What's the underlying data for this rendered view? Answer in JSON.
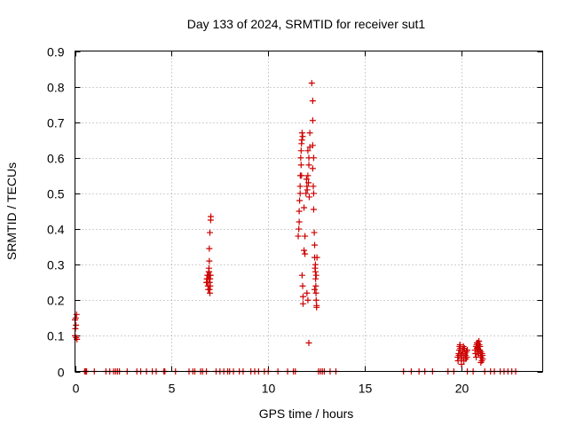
{
  "chart_data": {
    "type": "scatter",
    "title": "Day 133 of 2024, SRMTID for receiver sut1",
    "xlabel": "GPS time / hours",
    "ylabel": "SRMTID / TECUs",
    "xlim": [
      0,
      24.2
    ],
    "ylim": [
      0,
      0.9
    ],
    "xticks": [
      0,
      5,
      10,
      15,
      20
    ],
    "yticks": [
      0,
      0.1,
      0.2,
      0.3,
      0.4,
      0.5,
      0.6,
      0.7,
      0.8,
      0.9
    ],
    "xtick_labels": [
      "0",
      "5",
      "10",
      "15",
      "20"
    ],
    "ytick_labels": [
      "0",
      "0.1",
      "0.2",
      "0.3",
      "0.4",
      "0.5",
      "0.6",
      "0.7",
      "0.8",
      "0.9"
    ],
    "grid": true,
    "marker": "+",
    "series": [
      {
        "name": "SRMTID",
        "color": "#cc0000",
        "points": [
          [
            0.0,
            0.145
          ],
          [
            0.02,
            0.12
          ],
          [
            0.04,
            0.15
          ],
          [
            0.05,
            0.13
          ],
          [
            0.06,
            0.095
          ],
          [
            0.1,
            0.09
          ],
          [
            0.08,
            0.16
          ],
          [
            0.0,
            0.1
          ],
          [
            0.5,
            0.0
          ],
          [
            0.55,
            0.0
          ],
          [
            0.6,
            0.0
          ],
          [
            1.0,
            0.0
          ],
          [
            1.6,
            0.0
          ],
          [
            1.8,
            0.0
          ],
          [
            2.0,
            0.0
          ],
          [
            2.1,
            0.0
          ],
          [
            2.2,
            0.0
          ],
          [
            2.3,
            0.0
          ],
          [
            2.7,
            0.0
          ],
          [
            3.2,
            0.0
          ],
          [
            3.4,
            0.0
          ],
          [
            3.7,
            0.0
          ],
          [
            4.0,
            0.0
          ],
          [
            4.2,
            0.0
          ],
          [
            4.6,
            0.0
          ],
          [
            4.65,
            0.0
          ],
          [
            5.2,
            0.0
          ],
          [
            5.9,
            0.0
          ],
          [
            6.1,
            0.0
          ],
          [
            6.2,
            0.0
          ],
          [
            6.5,
            0.0
          ],
          [
            6.6,
            0.0
          ],
          [
            6.8,
            0.0
          ],
          [
            7.3,
            0.0
          ],
          [
            7.5,
            0.0
          ],
          [
            7.7,
            0.0
          ],
          [
            7.9,
            0.0
          ],
          [
            8.0,
            0.0
          ],
          [
            8.2,
            0.0
          ],
          [
            8.5,
            0.0
          ],
          [
            8.7,
            0.0
          ],
          [
            9.1,
            0.0
          ],
          [
            9.3,
            0.0
          ],
          [
            9.5,
            0.0
          ],
          [
            9.8,
            0.0
          ],
          [
            10.0,
            0.0
          ],
          [
            10.5,
            0.0
          ],
          [
            11.0,
            0.0
          ],
          [
            11.3,
            0.0
          ],
          [
            11.4,
            0.0
          ],
          [
            12.6,
            0.0
          ],
          [
            12.7,
            0.0
          ],
          [
            12.8,
            0.0
          ],
          [
            12.9,
            0.0
          ],
          [
            13.2,
            0.0
          ],
          [
            13.5,
            0.0
          ],
          [
            17.0,
            0.0
          ],
          [
            17.4,
            0.0
          ],
          [
            17.8,
            0.0
          ],
          [
            18.1,
            0.0
          ],
          [
            18.5,
            0.0
          ],
          [
            19.3,
            0.0
          ],
          [
            19.6,
            0.0
          ],
          [
            20.3,
            0.0
          ],
          [
            20.6,
            0.0
          ],
          [
            21.2,
            0.0
          ],
          [
            21.5,
            0.0
          ],
          [
            21.7,
            0.0
          ],
          [
            22.0,
            0.0
          ],
          [
            22.2,
            0.0
          ],
          [
            22.4,
            0.0
          ],
          [
            22.6,
            0.0
          ],
          [
            22.8,
            0.0
          ],
          [
            6.8,
            0.25
          ],
          [
            6.82,
            0.26
          ],
          [
            6.85,
            0.27
          ],
          [
            6.88,
            0.24
          ],
          [
            6.9,
            0.23
          ],
          [
            6.92,
            0.28
          ],
          [
            6.95,
            0.26
          ],
          [
            6.98,
            0.22
          ],
          [
            6.86,
            0.25
          ],
          [
            6.9,
            0.27
          ],
          [
            6.93,
            0.29
          ],
          [
            6.97,
            0.25
          ],
          [
            7.0,
            0.24
          ],
          [
            6.84,
            0.26
          ],
          [
            7.0,
            0.27
          ],
          [
            6.99,
            0.26
          ],
          [
            6.95,
            0.31
          ],
          [
            6.95,
            0.345
          ],
          [
            6.98,
            0.39
          ],
          [
            7.02,
            0.425
          ],
          [
            7.03,
            0.435
          ],
          [
            6.94,
            0.28
          ],
          [
            6.96,
            0.23
          ],
          [
            7.01,
            0.27
          ],
          [
            11.55,
            0.38
          ],
          [
            11.58,
            0.4
          ],
          [
            11.6,
            0.42
          ],
          [
            11.6,
            0.45
          ],
          [
            11.62,
            0.48
          ],
          [
            11.65,
            0.52
          ],
          [
            11.66,
            0.55
          ],
          [
            11.68,
            0.6
          ],
          [
            11.7,
            0.62
          ],
          [
            11.72,
            0.64
          ],
          [
            11.74,
            0.65
          ],
          [
            11.75,
            0.67
          ],
          [
            11.78,
            0.66
          ],
          [
            11.7,
            0.58
          ],
          [
            11.72,
            0.55
          ],
          [
            11.65,
            0.5
          ],
          [
            11.75,
            0.27
          ],
          [
            11.78,
            0.24
          ],
          [
            11.8,
            0.21
          ],
          [
            11.8,
            0.19
          ],
          [
            11.85,
            0.34
          ],
          [
            11.9,
            0.33
          ],
          [
            11.9,
            0.38
          ],
          [
            11.85,
            0.46
          ],
          [
            11.95,
            0.5
          ],
          [
            12.0,
            0.52
          ],
          [
            12.05,
            0.55
          ],
          [
            12.1,
            0.58
          ],
          [
            12.1,
            0.6
          ],
          [
            12.15,
            0.67
          ],
          [
            12.15,
            0.63
          ],
          [
            12.05,
            0.62
          ],
          [
            11.98,
            0.54
          ],
          [
            12.02,
            0.51
          ],
          [
            12.08,
            0.53
          ],
          [
            12.12,
            0.49
          ],
          [
            12.0,
            0.22
          ],
          [
            12.05,
            0.2
          ],
          [
            12.1,
            0.08
          ],
          [
            12.25,
            0.81
          ],
          [
            12.3,
            0.76
          ],
          [
            12.3,
            0.705
          ],
          [
            12.3,
            0.635
          ],
          [
            12.35,
            0.6
          ],
          [
            12.3,
            0.57
          ],
          [
            12.33,
            0.52
          ],
          [
            12.35,
            0.5
          ],
          [
            12.35,
            0.455
          ],
          [
            12.38,
            0.39
          ],
          [
            12.4,
            0.355
          ],
          [
            12.4,
            0.32
          ],
          [
            12.42,
            0.29
          ],
          [
            12.44,
            0.28
          ],
          [
            12.45,
            0.26
          ],
          [
            12.46,
            0.24
          ],
          [
            12.47,
            0.22
          ],
          [
            12.48,
            0.2
          ],
          [
            12.5,
            0.185
          ],
          [
            12.5,
            0.18
          ],
          [
            12.44,
            0.3
          ],
          [
            12.48,
            0.27
          ],
          [
            12.52,
            0.32
          ],
          [
            12.4,
            0.23
          ],
          [
            19.8,
            0.04
          ],
          [
            19.85,
            0.05
          ],
          [
            19.88,
            0.06
          ],
          [
            19.9,
            0.07
          ],
          [
            19.92,
            0.075
          ],
          [
            19.95,
            0.05
          ],
          [
            19.98,
            0.035
          ],
          [
            20.0,
            0.045
          ],
          [
            20.05,
            0.06
          ],
          [
            20.08,
            0.055
          ],
          [
            20.1,
            0.04
          ],
          [
            20.12,
            0.03
          ],
          [
            20.15,
            0.065
          ],
          [
            20.18,
            0.05
          ],
          [
            20.2,
            0.045
          ],
          [
            20.25,
            0.055
          ],
          [
            20.28,
            0.04
          ],
          [
            20.3,
            0.06
          ],
          [
            19.82,
            0.03
          ],
          [
            19.86,
            0.045
          ],
          [
            19.94,
            0.065
          ],
          [
            20.0,
            0.02
          ],
          [
            20.22,
            0.035
          ],
          [
            20.1,
            0.07
          ],
          [
            20.7,
            0.06
          ],
          [
            20.75,
            0.07
          ],
          [
            20.78,
            0.075
          ],
          [
            20.8,
            0.08
          ],
          [
            20.82,
            0.055
          ],
          [
            20.85,
            0.065
          ],
          [
            20.88,
            0.05
          ],
          [
            20.9,
            0.07
          ],
          [
            20.92,
            0.075
          ],
          [
            20.95,
            0.06
          ],
          [
            20.98,
            0.045
          ],
          [
            21.0,
            0.055
          ],
          [
            21.02,
            0.04
          ],
          [
            21.05,
            0.03
          ],
          [
            21.08,
            0.045
          ],
          [
            21.1,
            0.035
          ],
          [
            20.72,
            0.05
          ],
          [
            20.76,
            0.04
          ],
          [
            20.84,
            0.08
          ],
          [
            20.9,
            0.085
          ],
          [
            20.96,
            0.07
          ],
          [
            21.06,
            0.05
          ],
          [
            20.8,
            0.065
          ],
          [
            21.0,
            0.025
          ]
        ]
      }
    ]
  }
}
